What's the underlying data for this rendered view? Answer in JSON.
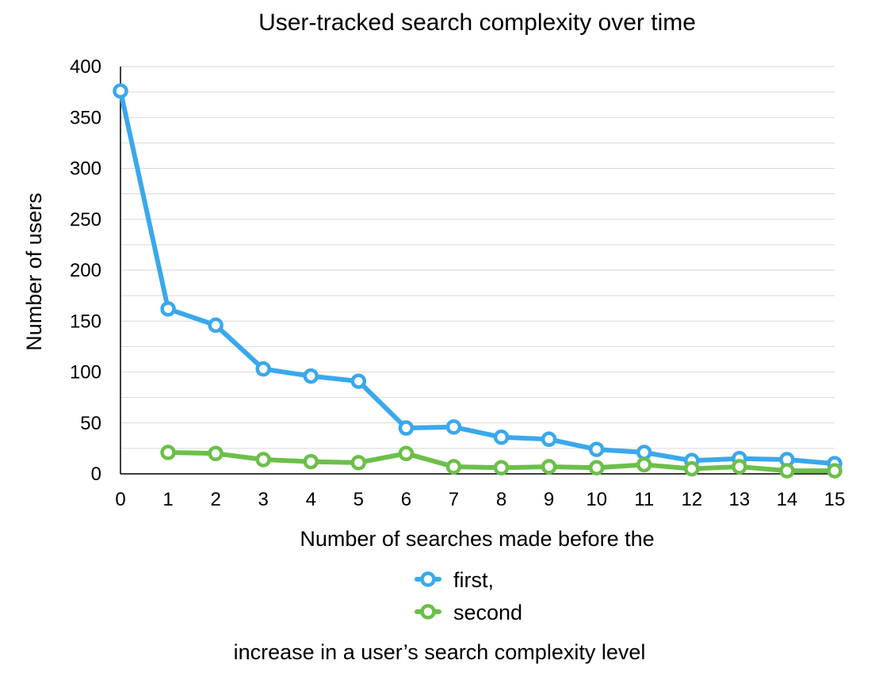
{
  "chart_data": {
    "type": "line",
    "title": "User-tracked search complexity over time",
    "xlabel": "Number of searches made before the",
    "xlabel_line2": "increase in a user’s search complexity level",
    "ylabel": "Number of users",
    "x": [
      0,
      1,
      2,
      3,
      4,
      5,
      6,
      7,
      8,
      9,
      10,
      11,
      12,
      13,
      14,
      15
    ],
    "ylim": [
      0,
      400
    ],
    "yticks": [
      0,
      50,
      100,
      150,
      200,
      250,
      300,
      350,
      400
    ],
    "grid": true,
    "legend_position": "bottom",
    "series": [
      {
        "name": "first,",
        "color": "#3aa8ec",
        "values": [
          376,
          162,
          146,
          103,
          96,
          91,
          45,
          46,
          36,
          34,
          24,
          21,
          13,
          15,
          14,
          10
        ]
      },
      {
        "name": "second",
        "color": "#6cbf4a",
        "values": [
          null,
          21,
          20,
          14,
          12,
          11,
          20,
          7,
          6,
          7,
          6,
          9,
          5,
          7,
          3,
          3
        ]
      }
    ]
  }
}
